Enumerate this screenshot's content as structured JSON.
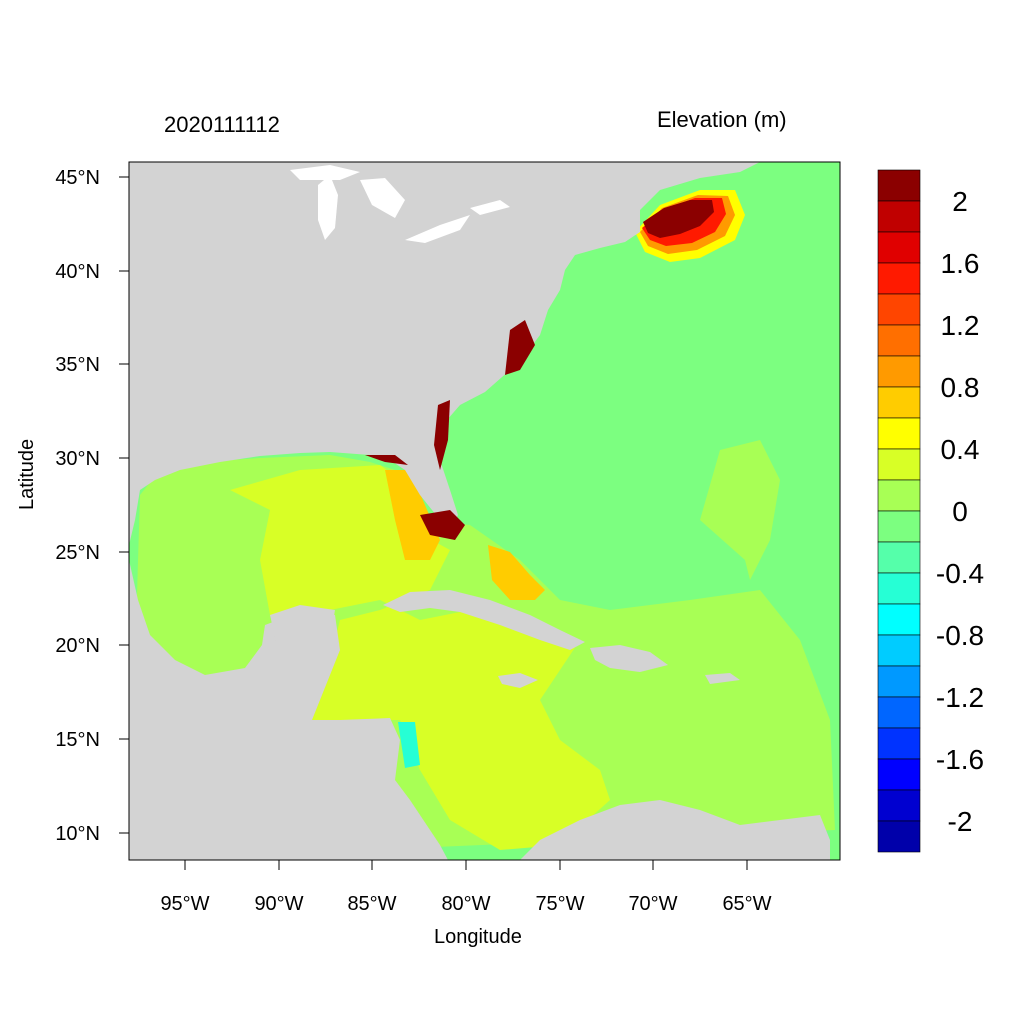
{
  "map": {
    "date": "2020111112",
    "variable": "Elevation (m)",
    "xlabel": "Longitude",
    "ylabel": "Latitude",
    "lon_ticks": [
      "95°W",
      "90°W",
      "85°W",
      "80°W",
      "75°W",
      "70°W",
      "65°W"
    ],
    "lat_ticks": [
      "45°N",
      "40°N",
      "35°N",
      "30°N",
      "25°N",
      "20°N",
      "15°N",
      "10°N"
    ],
    "lon_range": [
      -98,
      -60
    ],
    "lat_range": [
      8.5,
      46
    ],
    "land_color": "#d3d3d3"
  },
  "colorbar": {
    "levels": [
      2.2,
      2.0,
      1.8,
      1.6,
      1.4,
      1.2,
      1.0,
      0.8,
      0.6,
      0.4,
      0.2,
      0.0,
      -0.2,
      -0.4,
      -0.6,
      -0.8,
      -1.0,
      -1.2,
      -1.4,
      -1.6,
      -1.8,
      -2.0,
      -2.2
    ],
    "colors": [
      "#8b0000",
      "#c00000",
      "#e00000",
      "#ff1a00",
      "#ff4500",
      "#ff6f00",
      "#ff9a00",
      "#ffcc00",
      "#ffff00",
      "#d8ff26",
      "#a8ff55",
      "#7cff80",
      "#55ffaa",
      "#26ffd5",
      "#00ffff",
      "#00ccff",
      "#0099ff",
      "#0066ff",
      "#0033ff",
      "#0000ff",
      "#0000d0",
      "#0000aa"
    ],
    "tick_labels": [
      "2",
      "1.6",
      "1.2",
      "0.8",
      "0.4",
      "0",
      "-0.4",
      "-0.8",
      "-1.2",
      "-1.6",
      "-2"
    ]
  }
}
